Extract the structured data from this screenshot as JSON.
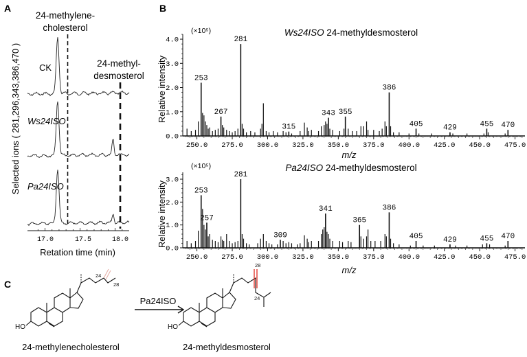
{
  "panels": {
    "A": {
      "letter": "A",
      "peak1_label_line1": "24-methylene-",
      "peak1_label_line2": "cholesterol",
      "peak2_label_line1": "24-methyl-",
      "peak2_label_line2": "desmosterol",
      "trace_labels": [
        "CK",
        "Ws24ISO",
        "Pa24ISO"
      ],
      "ylabel": "Selected ions ( 281,296,343,386,470 )",
      "xlabel": "Retation time (min)",
      "xticks": [
        "17.0",
        "17.5",
        "18.0"
      ]
    },
    "B": {
      "letter": "B",
      "xtick_labels": [
        "250.0",
        "275.0",
        "300.0",
        "325.0",
        "350.0",
        "375.0",
        "400.0",
        "425.0",
        "450.0",
        "475.0"
      ]
    },
    "C": {
      "letter": "C",
      "reactant": "24-methylenecholesterol",
      "product": "24-methyldesmosterol",
      "enzyme": "Pa24ISO",
      "atom_labels_reactant": [
        "24",
        "28"
      ],
      "atom_labels_product": [
        "28",
        "24"
      ],
      "ho_label": "HO"
    }
  },
  "chart_data": [
    {
      "type": "line",
      "panel": "A",
      "xlabel": "Retation time (min)",
      "ylabel": "Selected ions ( 281,296,343,386,470 )",
      "xlim": [
        16.75,
        18.2
      ],
      "series": [
        {
          "name": "CK",
          "peaks": [
            {
              "x": 17.18,
              "rel_height": 1.0
            }
          ]
        },
        {
          "name": "Ws24ISO",
          "peaks": [
            {
              "x": 17.18,
              "rel_height": 1.0
            },
            {
              "x": 17.97,
              "rel_height": 0.28
            }
          ]
        },
        {
          "name": "Pa24ISO",
          "peaks": [
            {
              "x": 17.18,
              "rel_height": 1.0
            },
            {
              "x": 17.97,
              "rel_height": 0.17
            }
          ]
        }
      ]
    },
    {
      "type": "bar",
      "panel": "B-top",
      "title_italic": "Ws24ISO",
      "title_rest": " 24-methyldesmosterol",
      "ylabel": "Relative intensity",
      "xlabel": "m/z",
      "scale_label": "(×10⁵)",
      "ylim": [
        0,
        4.2
      ],
      "yticks": [
        "0.0",
        "1.0",
        "2.0",
        "3.0",
        "4.0"
      ],
      "xlim": [
        240,
        482
      ],
      "labeled_peaks": [
        {
          "mz": 253,
          "label": "253",
          "value": 2.2
        },
        {
          "mz": 267,
          "label": "267",
          "value": 0.8
        },
        {
          "mz": 281,
          "label": "281",
          "value": 3.8
        },
        {
          "mz": 315,
          "label": "315",
          "value": 0.18
        },
        {
          "mz": 343,
          "label": "343",
          "value": 0.75
        },
        {
          "mz": 355,
          "label": "355",
          "value": 0.8
        },
        {
          "mz": 386,
          "label": "386",
          "value": 1.8
        },
        {
          "mz": 405,
          "label": "405",
          "value": 0.3
        },
        {
          "mz": 429,
          "label": "429",
          "value": 0.15
        },
        {
          "mz": 455,
          "label": "455",
          "value": 0.3
        },
        {
          "mz": 470,
          "label": "470",
          "value": 0.25
        }
      ],
      "minor_peaks": [
        [
          243,
          0.3
        ],
        [
          246,
          0.2
        ],
        [
          249,
          0.25
        ],
        [
          251,
          0.6
        ],
        [
          254,
          0.95
        ],
        [
          255,
          0.85
        ],
        [
          256,
          0.6
        ],
        [
          257,
          0.45
        ],
        [
          258,
          0.3
        ],
        [
          259,
          0.35
        ],
        [
          261,
          0.2
        ],
        [
          263,
          0.25
        ],
        [
          265,
          0.3
        ],
        [
          268,
          0.45
        ],
        [
          269,
          0.35
        ],
        [
          271,
          0.25
        ],
        [
          273,
          0.2
        ],
        [
          275,
          0.15
        ],
        [
          277,
          0.2
        ],
        [
          279,
          0.3
        ],
        [
          282,
          0.5
        ],
        [
          283,
          0.3
        ],
        [
          285,
          0.15
        ],
        [
          288,
          0.2
        ],
        [
          291,
          0.15
        ],
        [
          295,
          0.3
        ],
        [
          296,
          0.5
        ],
        [
          297,
          1.35
        ],
        [
          299,
          0.2
        ],
        [
          301,
          0.15
        ],
        [
          304,
          0.2
        ],
        [
          307,
          0.15
        ],
        [
          311,
          0.2
        ],
        [
          313,
          0.15
        ],
        [
          317,
          0.1
        ],
        [
          323,
          0.2
        ],
        [
          326,
          0.55
        ],
        [
          328,
          0.35
        ],
        [
          329,
          0.2
        ],
        [
          331,
          0.25
        ],
        [
          336,
          0.2
        ],
        [
          338,
          0.4
        ],
        [
          340,
          0.45
        ],
        [
          341,
          0.6
        ],
        [
          342,
          0.5
        ],
        [
          344,
          0.3
        ],
        [
          346,
          0.25
        ],
        [
          351,
          0.2
        ],
        [
          354,
          0.3
        ],
        [
          357,
          0.3
        ],
        [
          360,
          0.2
        ],
        [
          363,
          0.2
        ],
        [
          366,
          0.4
        ],
        [
          368,
          0.4
        ],
        [
          370,
          0.6
        ],
        [
          371,
          0.25
        ],
        [
          375,
          0.25
        ],
        [
          379,
          0.2
        ],
        [
          381,
          0.3
        ],
        [
          383,
          0.6
        ],
        [
          384,
          0.4
        ],
        [
          387,
          0.4
        ],
        [
          389,
          0.15
        ],
        [
          393,
          0.15
        ],
        [
          400,
          0.1
        ],
        [
          407,
          0.1
        ],
        [
          416,
          0.1
        ],
        [
          431,
          0.1
        ],
        [
          441,
          0.1
        ],
        [
          453,
          0.1
        ],
        [
          456,
          0.15
        ],
        [
          468,
          0.1
        ]
      ]
    },
    {
      "type": "bar",
      "panel": "B-bottom",
      "title_italic": "Pa24ISO",
      "title_rest": " 24-methyldesmosterol",
      "ylabel": "Relative intensity",
      "xlabel": "m/z",
      "scale_label": "(×10⁵)",
      "ylim": [
        0,
        3.3
      ],
      "yticks": [
        "0.0",
        "1.0",
        "2.0",
        "3.0"
      ],
      "xlim": [
        240,
        482
      ],
      "labeled_peaks": [
        {
          "mz": 253,
          "label": "253",
          "value": 2.3
        },
        {
          "mz": 257,
          "label": "257",
          "value": 1.1
        },
        {
          "mz": 281,
          "label": "281",
          "value": 3.0
        },
        {
          "mz": 309,
          "label": "309",
          "value": 0.35
        },
        {
          "mz": 341,
          "label": "341",
          "value": 1.5
        },
        {
          "mz": 365,
          "label": "365",
          "value": 1.0
        },
        {
          "mz": 386,
          "label": "386",
          "value": 1.55
        },
        {
          "mz": 405,
          "label": "405",
          "value": 0.3
        },
        {
          "mz": 429,
          "label": "429",
          "value": 0.15
        },
        {
          "mz": 455,
          "label": "455",
          "value": 0.2
        },
        {
          "mz": 470,
          "label": "470",
          "value": 0.3
        }
      ],
      "minor_peaks": [
        [
          243,
          0.3
        ],
        [
          246,
          0.2
        ],
        [
          249,
          0.3
        ],
        [
          251,
          0.75
        ],
        [
          254,
          1.7
        ],
        [
          255,
          1.0
        ],
        [
          256,
          0.8
        ],
        [
          258,
          0.5
        ],
        [
          259,
          0.6
        ],
        [
          261,
          0.35
        ],
        [
          263,
          0.3
        ],
        [
          265,
          0.25
        ],
        [
          267,
          0.5
        ],
        [
          268,
          0.35
        ],
        [
          269,
          0.3
        ],
        [
          271,
          0.6
        ],
        [
          273,
          0.3
        ],
        [
          275,
          0.2
        ],
        [
          277,
          0.25
        ],
        [
          279,
          0.3
        ],
        [
          282,
          0.6
        ],
        [
          283,
          0.4
        ],
        [
          285,
          0.2
        ],
        [
          287,
          0.15
        ],
        [
          293,
          0.2
        ],
        [
          295,
          0.4
        ],
        [
          297,
          0.6
        ],
        [
          299,
          0.3
        ],
        [
          301,
          0.2
        ],
        [
          303,
          0.15
        ],
        [
          307,
          0.15
        ],
        [
          311,
          0.3
        ],
        [
          313,
          0.2
        ],
        [
          315,
          0.25
        ],
        [
          317,
          0.2
        ],
        [
          321,
          0.15
        ],
        [
          323,
          0.2
        ],
        [
          326,
          0.55
        ],
        [
          328,
          0.4
        ],
        [
          329,
          0.25
        ],
        [
          331,
          0.3
        ],
        [
          336,
          0.3
        ],
        [
          338,
          0.6
        ],
        [
          339,
          0.8
        ],
        [
          340,
          0.9
        ],
        [
          342,
          0.7
        ],
        [
          343,
          0.6
        ],
        [
          344,
          0.4
        ],
        [
          346,
          0.3
        ],
        [
          351,
          0.3
        ],
        [
          353,
          0.25
        ],
        [
          357,
          0.3
        ],
        [
          359,
          0.25
        ],
        [
          366,
          0.5
        ],
        [
          368,
          0.4
        ],
        [
          370,
          0.5
        ],
        [
          371,
          0.8
        ],
        [
          373,
          0.3
        ],
        [
          376,
          0.3
        ],
        [
          380,
          0.3
        ],
        [
          383,
          0.6
        ],
        [
          384,
          0.5
        ],
        [
          387,
          0.4
        ],
        [
          389,
          0.2
        ],
        [
          393,
          0.15
        ],
        [
          401,
          0.1
        ],
        [
          410,
          0.1
        ],
        [
          418,
          0.1
        ],
        [
          433,
          0.1
        ],
        [
          441,
          0.1
        ],
        [
          452,
          0.15
        ],
        [
          457,
          0.15
        ],
        [
          468,
          0.1
        ]
      ]
    }
  ],
  "colors": {
    "ink": "#111111",
    "bond_highlight": "#e0281e",
    "reactant_highlight": "#e6b0a8"
  }
}
